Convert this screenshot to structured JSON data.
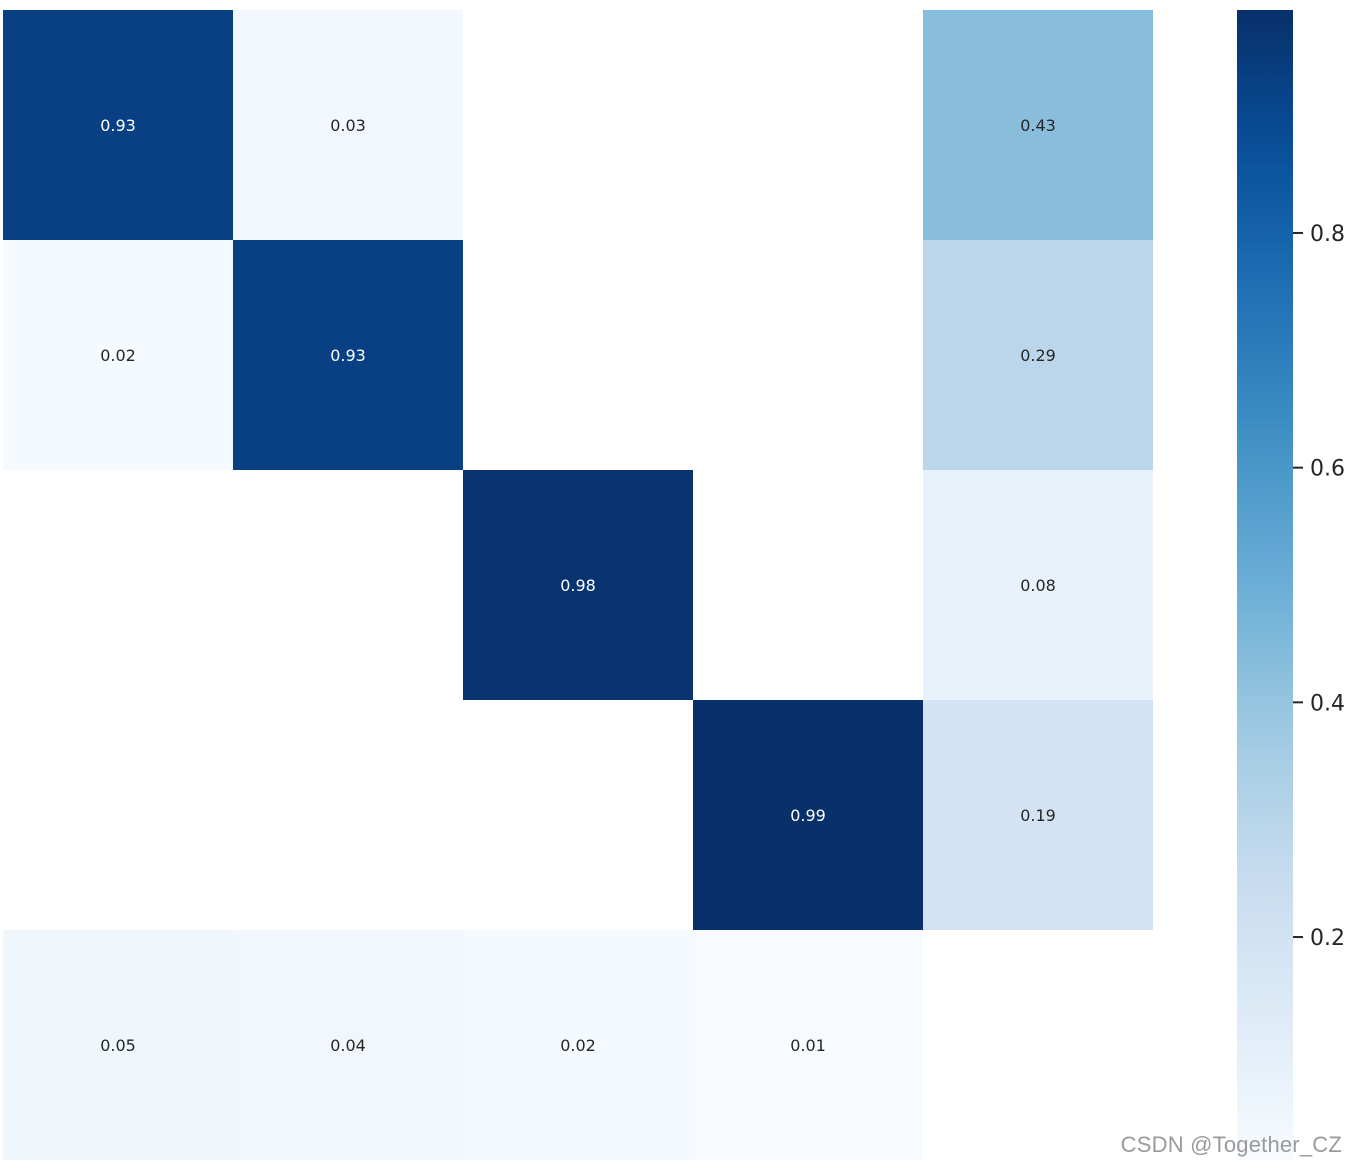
{
  "chart_data": {
    "type": "heatmap",
    "title": "",
    "xlabel": "",
    "ylabel": "",
    "colormap": "Blues",
    "rows": 5,
    "cols": 5,
    "values": [
      [
        0.93,
        0.03,
        null,
        null,
        0.43
      ],
      [
        0.02,
        0.93,
        null,
        null,
        0.29
      ],
      [
        null,
        null,
        0.98,
        null,
        0.08
      ],
      [
        null,
        null,
        null,
        0.99,
        0.19
      ],
      [
        0.05,
        0.04,
        0.02,
        0.01,
        null
      ]
    ],
    "value_range": [
      0.01,
      0.99
    ],
    "colorbar": {
      "ticks": [
        0.2,
        0.4,
        0.6,
        0.8
      ],
      "tick_labels": [
        "0.2",
        "0.4",
        "0.6",
        "0.8"
      ]
    }
  },
  "watermark": "CSDN @Together_CZ"
}
